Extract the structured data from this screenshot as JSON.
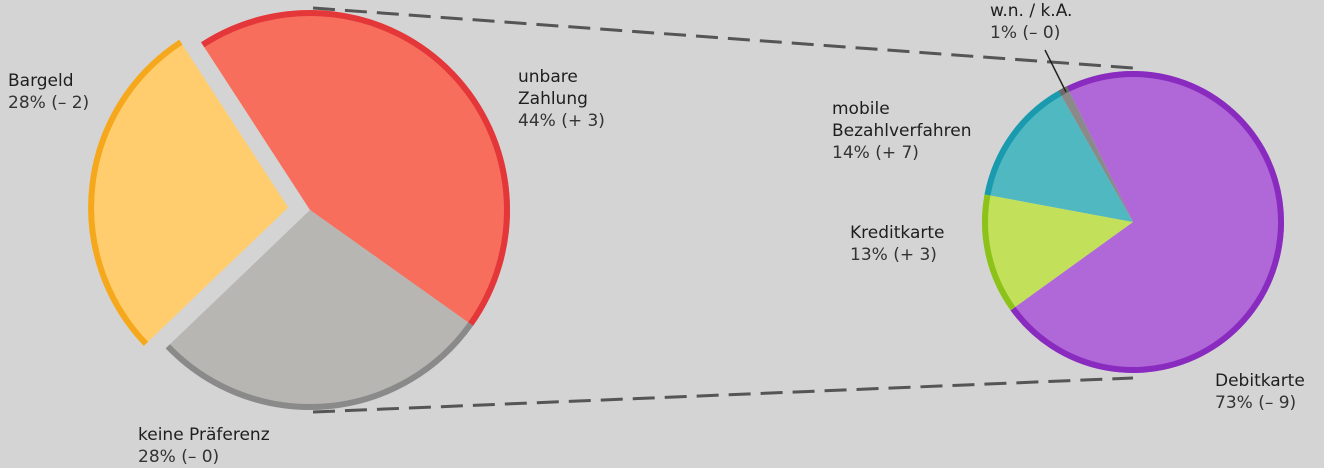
{
  "chart_data": [
    {
      "type": "pie",
      "categories": [
        "unbare Zahlung",
        "keine Präferenz",
        "Bargeld"
      ],
      "values": [
        44,
        28,
        28
      ],
      "value_labels": [
        "44% (+ 3)",
        "28% (– 0)",
        "28% (– 2)"
      ],
      "colors": [
        "#f76e5c",
        "#b8b6b3",
        "#ffcd6e"
      ],
      "rim_colors": [
        "#e3373a",
        "#8a8a8a",
        "#f5a81c"
      ]
    },
    {
      "type": "pie",
      "categories": [
        "Debitkarte",
        "Kreditkarte",
        "mobile Bezahlverfahren",
        "w.n. / k.A."
      ],
      "values": [
        73,
        13,
        14,
        1
      ],
      "value_labels": [
        "73% (– 9)",
        "13% (+ 3)",
        "14% (+ 7)",
        "1% (– 0)"
      ],
      "colors": [
        "#b068d8",
        "#c2e05a",
        "#4fb8c0",
        "#8a8a8a"
      ],
      "rim_colors": [
        "#8a2bbf",
        "#8cc21a",
        "#1a9aae",
        "#6a6a6a"
      ]
    }
  ]
}
